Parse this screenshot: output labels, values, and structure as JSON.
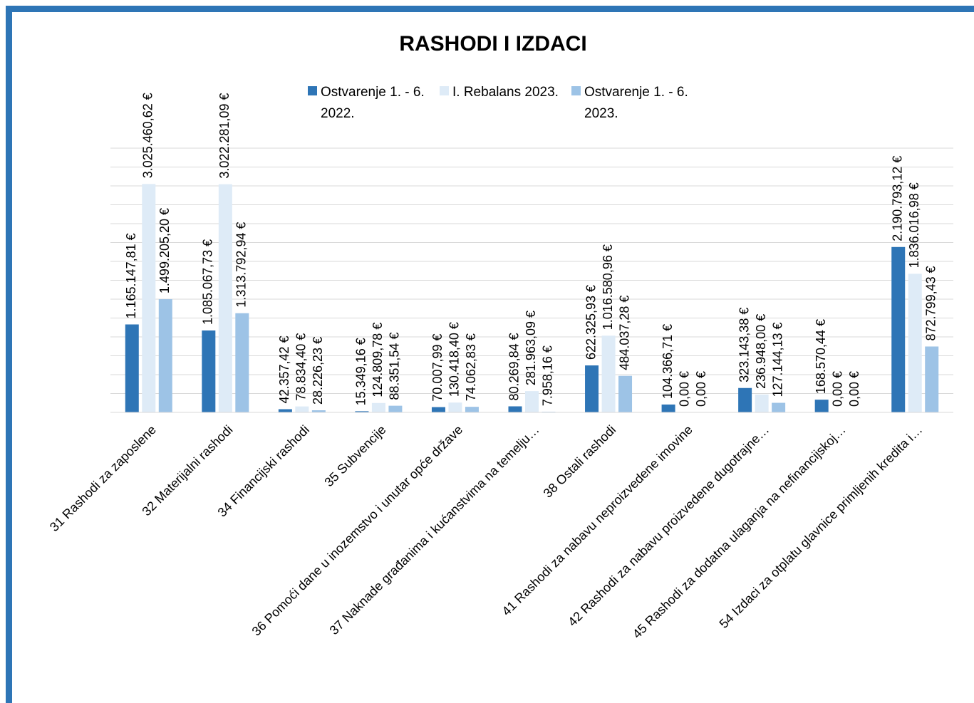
{
  "chart_data": {
    "type": "bar",
    "title": "RASHODI I IZDACI",
    "categories": [
      "31 Rashodi za zaposlene",
      "32 Materijalni rashodi",
      "34 Financijski rashodi",
      "35 Subvencije",
      "36 Pomoći dane u inozemstvo i unutar opće države",
      "37 Naknade građanima i kućanstvima na temelju…",
      "38 Ostali rashodi",
      "41 Rashodi za nabavu neproizvedene imovine",
      "42 Rashodi za nabavu proizvedene dugotrajne…",
      "45 Rashodi za dodatna ulaganja na nefinancijskoj…",
      "54 Izdaci za otplatu glavnice primljenih kredita i…"
    ],
    "series": [
      {
        "name": "Ostvarenje 1. - 6. 2022.",
        "color": "#2e75b6",
        "values": [
          1165147.81,
          1085067.73,
          42357.42,
          15349.16,
          70007.99,
          80269.84,
          622325.93,
          104366.71,
          323143.38,
          168570.44,
          2190793.12
        ],
        "value_labels": [
          "1.165.147,81 €",
          "1.085.067,73 €",
          "42.357,42 €",
          "15.349,16 €",
          "70.007,99 €",
          "80.269,84 €",
          "622.325,93 €",
          "104.366,71 €",
          "323.143,38 €",
          "168.570,44 €",
          "2.190.793,12 €"
        ]
      },
      {
        "name": "I. Rebalans 2023.",
        "color": "#deebf7",
        "values": [
          3025460.62,
          3022281.09,
          78834.4,
          124809.78,
          130418.4,
          281963.09,
          1016580.96,
          0,
          236948.0,
          0,
          1836016.98
        ],
        "value_labels": [
          "3.025.460,62 €",
          "3.022.281,09 €",
          "78.834,40 €",
          "124.809,78 €",
          "130.418,40 €",
          "281.963,09 €",
          "1.016.580,96 €",
          "0,00 €",
          "236.948,00 €",
          "0,00 €",
          "1.836.016,98 €"
        ]
      },
      {
        "name": "Ostvarenje 1. - 6. 2023.",
        "color": "#9dc3e6",
        "values": [
          1499205.2,
          1313792.94,
          28226.23,
          88351.54,
          74062.83,
          7958.16,
          484037.28,
          0,
          127144.13,
          0,
          872799.43
        ],
        "value_labels": [
          "1.499.205,20 €",
          "1.313.792,94 €",
          "28.226,23 €",
          "88.351,54 €",
          "74.062,83 €",
          "7.958,16 €",
          "484.037,28 €",
          "0,00 €",
          "127.144,13 €",
          "0,00 €",
          "872.799,43 €"
        ]
      }
    ],
    "ylim": [
      0,
      3500000
    ],
    "yticks": [
      0,
      250000,
      500000,
      750000,
      1000000,
      1250000,
      1500000,
      1750000,
      2000000,
      2250000,
      2500000,
      2750000,
      3000000,
      3250000,
      3500000
    ],
    "grid": true
  }
}
